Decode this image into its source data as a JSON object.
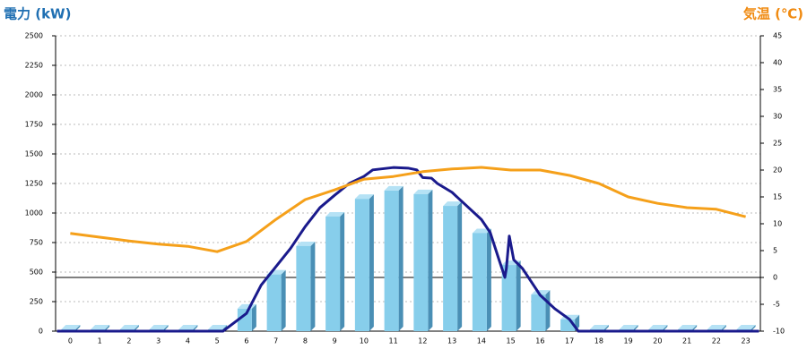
{
  "chart_data": {
    "type": "bar",
    "ylabel": "電力 (kW)",
    "y2label": "気温 (℃)",
    "categories": [
      "0",
      "1",
      "2",
      "3",
      "4",
      "5",
      "6",
      "7",
      "8",
      "9",
      "10",
      "11",
      "12",
      "13",
      "14",
      "15",
      "16",
      "17",
      "18",
      "19",
      "20",
      "21",
      "22",
      "23"
    ],
    "series": [
      {
        "type": "bar",
        "color": "#87ceeb",
        "values": [
          0,
          0,
          0,
          0,
          0,
          0,
          190,
          480,
          720,
          970,
          1120,
          1190,
          1160,
          1060,
          830,
          560,
          310,
          100,
          0,
          0,
          0,
          0,
          0,
          0
        ]
      },
      {
        "type": "line",
        "color": "#1a1a8c",
        "x": [
          -0.45,
          5.2,
          6,
          6.5,
          7,
          7.5,
          8,
          8.5,
          9,
          9.5,
          10,
          10.3,
          11,
          11.5,
          11.8,
          12,
          12.3,
          12.5,
          13,
          13.5,
          14,
          14.3,
          14.6,
          14.8,
          14.85,
          14.95,
          15.1,
          15.4,
          15.8,
          16,
          16.5,
          17,
          17.3,
          23.45
        ],
        "values": [
          0,
          0,
          150,
          390,
          545,
          700,
          885,
          1045,
          1150,
          1250,
          1310,
          1365,
          1385,
          1380,
          1365,
          1300,
          1295,
          1250,
          1175,
          1060,
          945,
          835,
          605,
          455,
          530,
          805,
          605,
          530,
          380,
          305,
          190,
          100,
          0,
          0
        ]
      },
      {
        "type": "line",
        "axis": "y2",
        "color": "#f5a01a",
        "values": [
          8.2,
          7.5,
          6.8,
          6.2,
          5.8,
          4.8,
          6.7,
          10.8,
          14.5,
          16.3,
          18.3,
          18.8,
          19.7,
          20.2,
          20.5,
          20,
          20,
          19,
          17.5,
          15,
          13.8,
          13,
          12.7,
          11.3
        ]
      }
    ],
    "ylim": [
      0,
      2500
    ],
    "yticks": [
      0,
      250,
      500,
      750,
      1000,
      1250,
      1500,
      1750,
      2000,
      2250,
      2500
    ],
    "y2lim": [
      -10,
      45
    ],
    "y2ticks": [
      -10,
      -5,
      0,
      5,
      10,
      15,
      20,
      25,
      30,
      35,
      40,
      45
    ],
    "grid": true
  }
}
